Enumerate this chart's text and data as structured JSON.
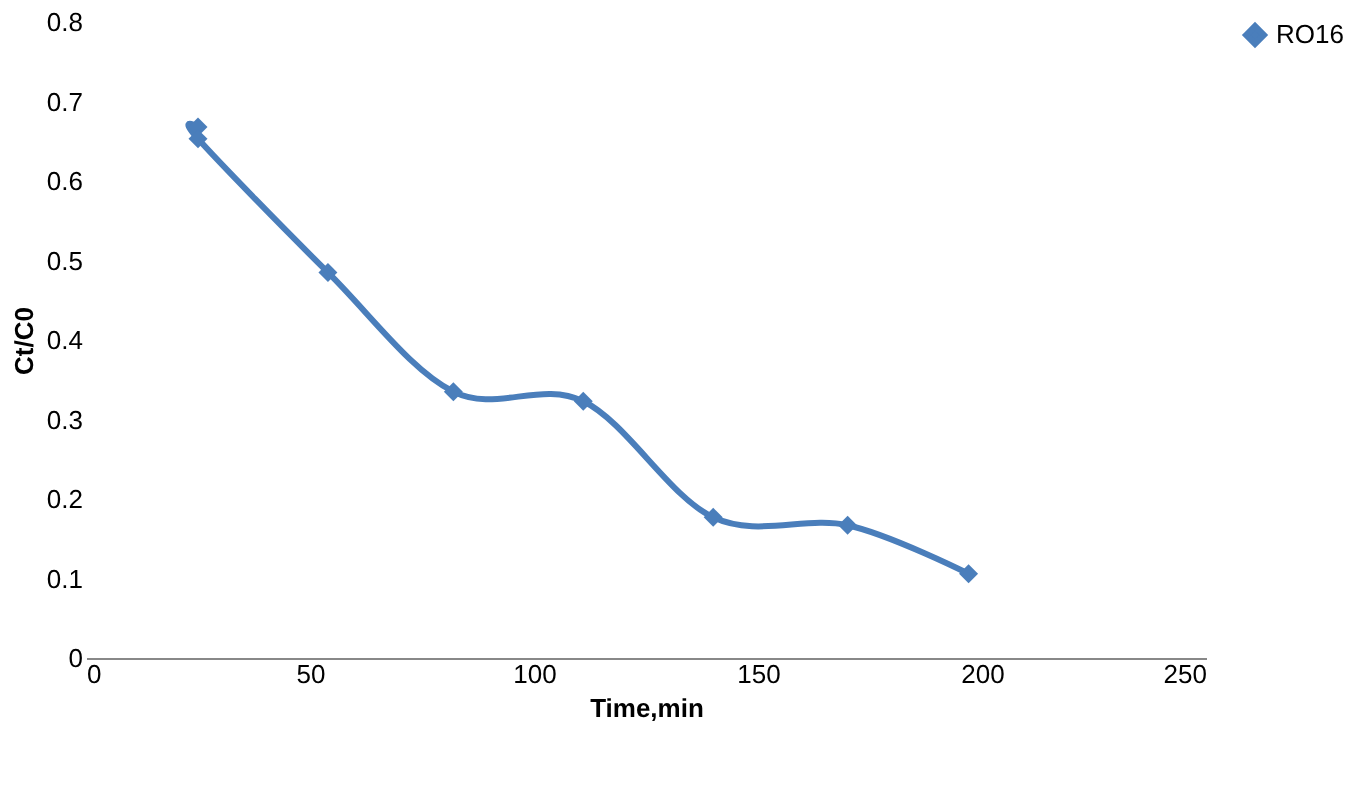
{
  "chart_data": {
    "type": "line",
    "xlabel": "Time,min",
    "ylabel": "Ct/C0",
    "xlim": [
      0,
      250
    ],
    "xticks": [
      0,
      50,
      100,
      150,
      200,
      250
    ],
    "ylim": [
      0,
      0.8
    ],
    "yticks": [
      0,
      0.1,
      0.2,
      0.3,
      0.4,
      0.5,
      0.6,
      0.7,
      0.8
    ],
    "grid": false,
    "legend": "right",
    "marker": "diamond",
    "line_style": "solid",
    "series": [
      {
        "name": "RO16",
        "color": "#4a7ebb",
        "x": [
          25,
          25,
          54,
          82,
          111,
          140,
          170,
          197
        ],
        "values": [
          0.668,
          0.653,
          0.485,
          0.335,
          0.323,
          0.177,
          0.167,
          0.106
        ]
      }
    ]
  }
}
